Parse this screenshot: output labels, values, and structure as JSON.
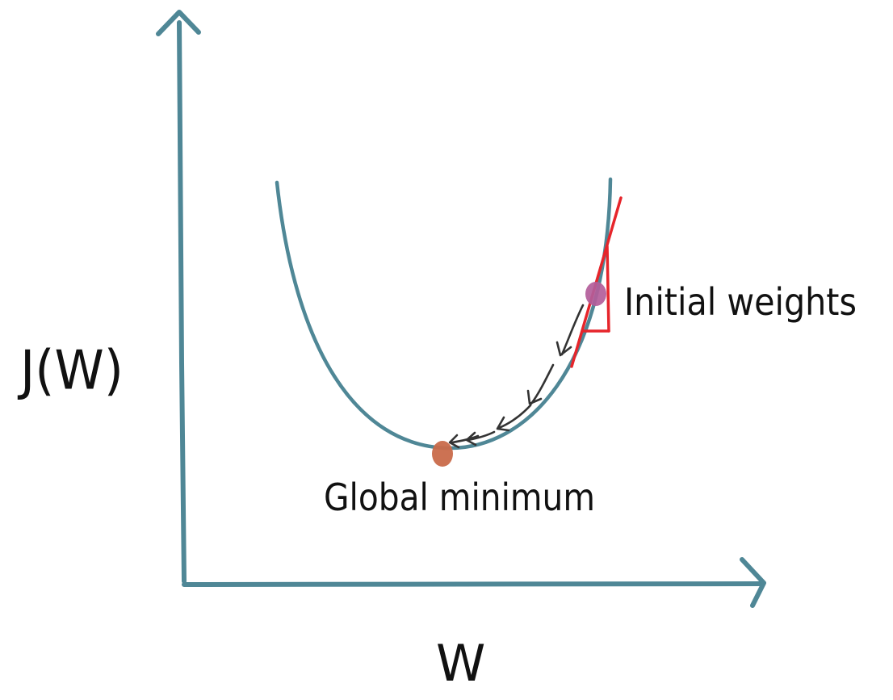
{
  "axes": {
    "y_label": "J(W)",
    "x_label": "W",
    "color": "#4f8796"
  },
  "annotations": {
    "initial_weights": "Initial weights",
    "global_minimum": "Global minimum"
  },
  "colors": {
    "curve": "#4f8796",
    "tangent": "#e6252b",
    "initial_point": "#b35d9a",
    "minimum_point": "#c96a4a",
    "step_arrows": "#333333",
    "text": "#111111"
  }
}
